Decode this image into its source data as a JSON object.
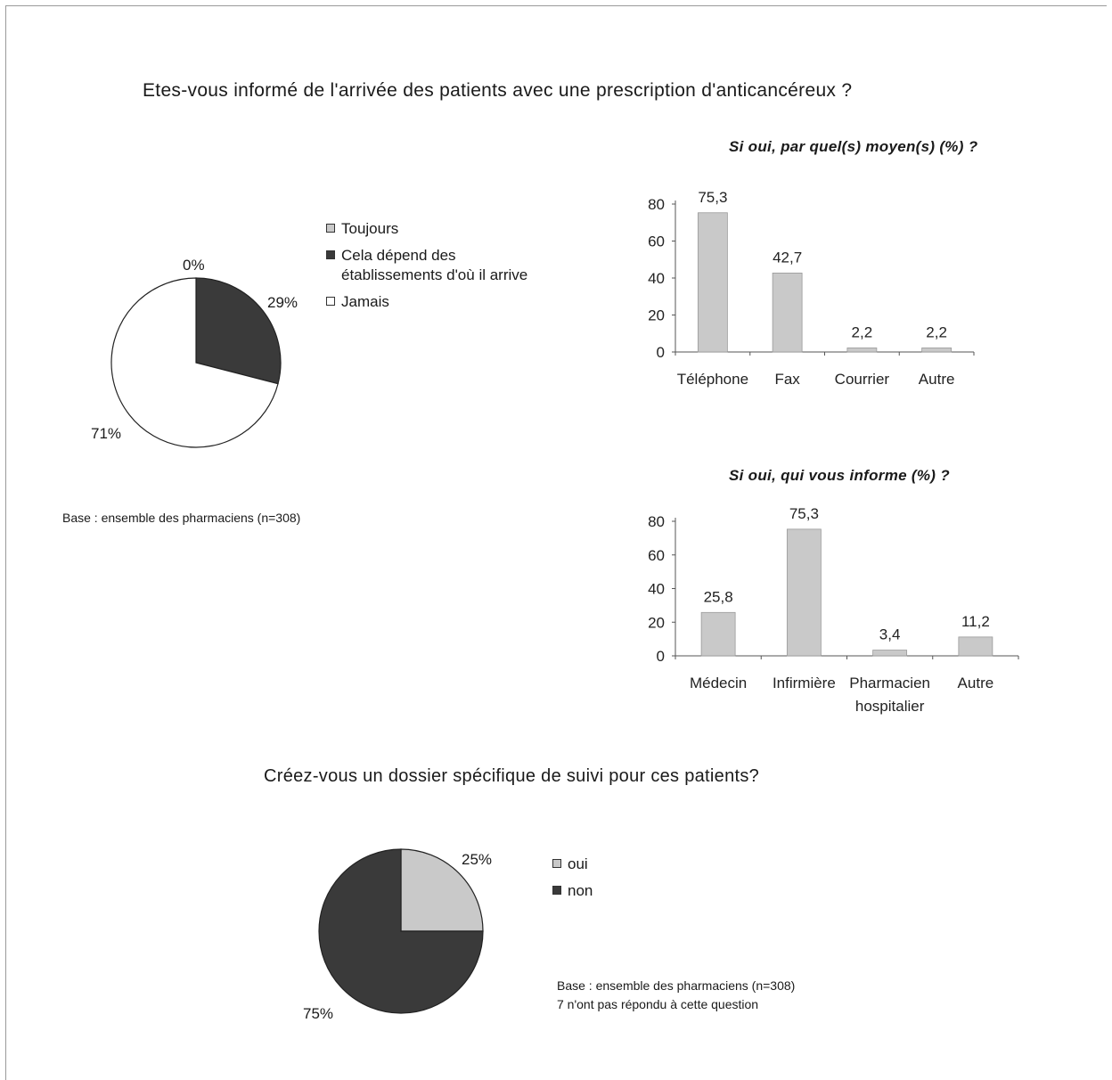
{
  "main_title": "Etes-vous informé de l'arrivée des patients avec une prescription d'anticancéreux ?",
  "second_title": "Créez-vous un dossier spécifique de suivi pour ces patients?",
  "note_top": "Base : ensemble des pharmaciens (n=308)",
  "note_bottom": [
    "Base : ensemble des pharmaciens (n=308)",
    "7 n'ont pas répondu à cette question"
  ],
  "colors": {
    "light_gray": "#c9c9c9",
    "dark_gray": "#3a3a3a",
    "white": "#ffffff",
    "stroke": "#222222"
  },
  "chart_data": [
    {
      "type": "pie",
      "labels": [
        "Toujours",
        "Cela dépend des établissements d'où il arrive",
        "Jamais"
      ],
      "legend": [
        {
          "text": [
            "Toujours"
          ],
          "color": "#c9c9c9"
        },
        {
          "text": [
            "Cela dépend des",
            "établissements d'où il arrive"
          ],
          "color": "#3a3a3a"
        },
        {
          "text": [
            "Jamais"
          ],
          "color": "#ffffff"
        }
      ],
      "values": [
        0,
        29,
        71
      ],
      "value_labels": [
        "0%",
        "29%",
        "71%"
      ]
    },
    {
      "type": "bar",
      "title": "Si oui, par quel(s) moyen(s) (%) ?",
      "categories": [
        "Téléphone",
        "Fax",
        "Courrier",
        "Autre"
      ],
      "values": [
        75.3,
        42.7,
        2.2,
        2.2
      ],
      "value_labels": [
        "75,3",
        "42,7",
        "2,2",
        "2,2"
      ],
      "yticks": [
        0,
        20,
        40,
        60,
        80
      ],
      "ylim": [
        0,
        80
      ]
    },
    {
      "type": "bar",
      "title": "Si oui, qui vous informe (%) ?",
      "categories": [
        [
          "Médecin"
        ],
        [
          "Infirmière"
        ],
        [
          "Pharmacien",
          "hospitalier"
        ],
        [
          "Autre"
        ]
      ],
      "values": [
        25.8,
        75.3,
        3.4,
        11.2
      ],
      "value_labels": [
        "25,8",
        "75,3",
        "3,4",
        "11,2"
      ],
      "yticks": [
        0,
        20,
        40,
        60,
        80
      ],
      "ylim": [
        0,
        80
      ]
    },
    {
      "type": "pie",
      "labels": [
        "oui",
        "non"
      ],
      "legend": [
        {
          "text": [
            "oui"
          ],
          "color": "#c9c9c9"
        },
        {
          "text": [
            "non"
          ],
          "color": "#3a3a3a"
        }
      ],
      "values": [
        25,
        75
      ],
      "value_labels": [
        "25%",
        "75%"
      ]
    }
  ]
}
